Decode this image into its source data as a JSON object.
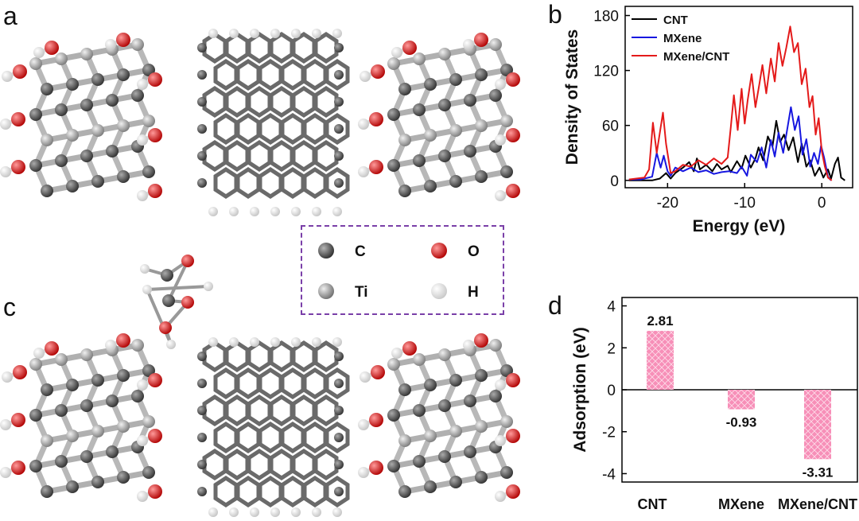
{
  "panels": {
    "a": "a",
    "b": "b",
    "c": "c",
    "d": "d"
  },
  "legend": {
    "items": [
      {
        "label": "C",
        "color": "#555555"
      },
      {
        "label": "O",
        "color": "#e0191c"
      },
      {
        "label": "Ti",
        "color": "#a9a9a9"
      },
      {
        "label": "H",
        "color": "#f2f2f2"
      }
    ]
  },
  "colors": {
    "carbon": "#5a5a5a",
    "titanium": "#b4b4b4",
    "oxygen": "#dd1a1a",
    "hydrogen": "#f4f4f4",
    "legend_border": "#7a3fa8"
  },
  "chart_data": [
    {
      "type": "line",
      "panel": "b",
      "xlabel": "Energy (eV)",
      "ylabel": "Density of States",
      "xlim": [
        -25.5,
        4
      ],
      "ylim": [
        -8,
        190
      ],
      "xticks": [
        -20,
        -10,
        0
      ],
      "yticks": [
        0,
        60,
        120,
        180
      ],
      "legend_position": "top-left",
      "series": [
        {
          "name": "CNT",
          "color": "#000000",
          "x": [
            -25,
            -22,
            -21,
            -20.2,
            -19.6,
            -19,
            -18,
            -17.2,
            -16.6,
            -16.2,
            -15.8,
            -15,
            -14.2,
            -13.6,
            -13,
            -12.2,
            -11.8,
            -11,
            -10.4,
            -9.9,
            -9.2,
            -8.6,
            -8.2,
            -7.6,
            -7,
            -6.4,
            -5.9,
            -5.4,
            -4.9,
            -4.3,
            -3.7,
            -3.1,
            -2.6,
            -2,
            -1.5,
            -0.9,
            -0.3,
            0.2,
            0.8,
            1.2,
            1.7,
            2.1,
            2.5,
            3
          ],
          "y": [
            0,
            0,
            2,
            8,
            2,
            8,
            14,
            20,
            10,
            24,
            12,
            17,
            10,
            18,
            12,
            16,
            9,
            21,
            13,
            27,
            14,
            24,
            36,
            22,
            48,
            37,
            65,
            42,
            50,
            33,
            47,
            20,
            40,
            15,
            22,
            5,
            14,
            3,
            12,
            2,
            18,
            25,
            3,
            0
          ]
        },
        {
          "name": "MXene",
          "color": "#1717e0",
          "x": [
            -25,
            -23.5,
            -22,
            -21.4,
            -20.9,
            -20.5,
            -20,
            -19.6,
            -19,
            -18,
            -17,
            -16,
            -15,
            -14,
            -13,
            -12,
            -11,
            -10.4,
            -9.7,
            -9.2,
            -8.4,
            -7.8,
            -7.2,
            -6.6,
            -6.1,
            -5.6,
            -5,
            -4.5,
            -4,
            -3.5,
            -3,
            -2.5,
            -2,
            -1.5,
            -1,
            -0.5,
            -0.1,
            0.3,
            0.8,
            1.2
          ],
          "y": [
            1,
            1,
            4,
            30,
            14,
            27,
            10,
            5,
            14,
            10,
            14,
            9,
            11,
            7,
            9,
            10,
            8,
            15,
            5,
            28,
            20,
            36,
            14,
            44,
            26,
            52,
            30,
            55,
            80,
            55,
            70,
            28,
            45,
            15,
            30,
            18,
            38,
            25,
            4,
            0
          ],
          "x2": [],
          "y2": []
        },
        {
          "name": "MXene/CNT",
          "color": "#e41a1a",
          "x": [
            -25,
            -23,
            -22.4,
            -21.9,
            -21.4,
            -21,
            -20.6,
            -20.2,
            -19.6,
            -19,
            -18,
            -17,
            -16,
            -15,
            -14,
            -13,
            -12.2,
            -11.8,
            -11.4,
            -10.9,
            -10.4,
            -10,
            -9.6,
            -9.1,
            -8.6,
            -8.1,
            -7.7,
            -7.2,
            -6.6,
            -6.1,
            -5.6,
            -5.1,
            -4.6,
            -4.1,
            -3.6,
            -3.1,
            -2.6,
            -2.1,
            -1.6,
            -1.2,
            -0.8,
            -0.4,
            0,
            0.4,
            0.8,
            1.3
          ],
          "y": [
            1,
            3,
            12,
            63,
            30,
            52,
            74,
            40,
            8,
            10,
            17,
            15,
            22,
            17,
            24,
            18,
            25,
            58,
            93,
            55,
            100,
            62,
            88,
            116,
            80,
            105,
            126,
            95,
            133,
            108,
            150,
            125,
            145,
            168,
            140,
            150,
            105,
            122,
            80,
            92,
            50,
            68,
            32,
            15,
            3,
            0
          ]
        }
      ]
    },
    {
      "type": "bar",
      "panel": "d",
      "ylabel": "Adsorption (eV)",
      "categories": [
        "CNT",
        "MXene",
        "MXene/CNT"
      ],
      "values": [
        2.81,
        -0.93,
        -3.31
      ],
      "data_labels": [
        "2.81",
        "-0.93",
        "-3.31"
      ],
      "ylim": [
        -4.4,
        4.4
      ],
      "yticks": [
        -4,
        -2,
        0,
        2,
        4
      ],
      "bar_color": "#f78fb8"
    }
  ]
}
